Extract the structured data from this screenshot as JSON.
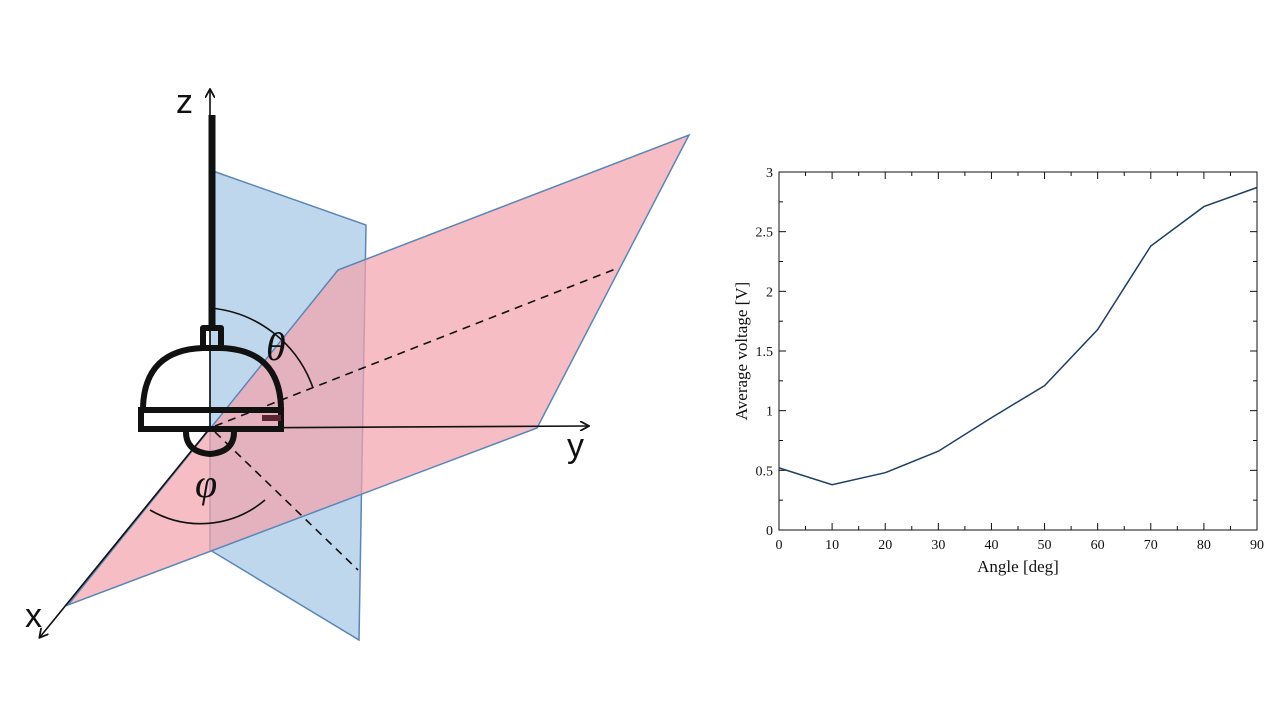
{
  "diagram": {
    "axes": {
      "x": "x",
      "y": "y",
      "z": "z"
    },
    "angles": {
      "theta": "θ",
      "phi": "φ"
    },
    "colors": {
      "vertical_plane": "#a9c9e6",
      "tilted_plane": "#f2a3ad",
      "plane_edge": "#5a86b8",
      "lamp": "#111111"
    }
  },
  "chart_data": {
    "type": "line",
    "x": [
      0,
      10,
      20,
      30,
      40,
      50,
      60,
      70,
      80,
      90
    ],
    "series": [
      {
        "values": [
          0.52,
          0.38,
          0.48,
          0.66,
          0.94,
          1.21,
          1.68,
          2.38,
          2.71,
          2.87
        ]
      }
    ],
    "xlabel": "Angle [deg]",
    "ylabel": "Average voltage [V]",
    "xlim": [
      0,
      90
    ],
    "ylim": [
      0,
      3
    ],
    "xticks": [
      "0",
      "10",
      "20",
      "30",
      "40",
      "50",
      "60",
      "70",
      "80",
      "90"
    ],
    "yticks": [
      "0",
      "0.5",
      "1",
      "1.5",
      "2",
      "2.5",
      "3"
    ],
    "grid": false,
    "line_color": "#1f3f66"
  }
}
